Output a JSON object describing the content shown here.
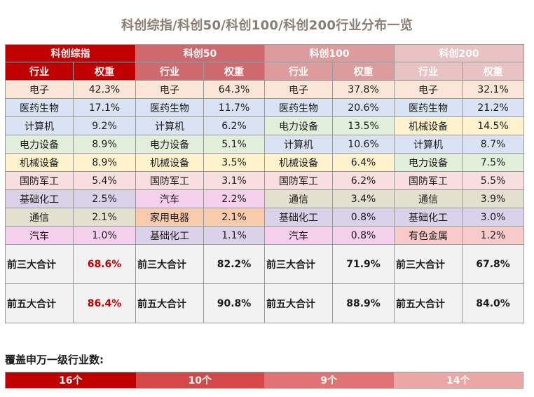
{
  "title": "科创综指/科创50/科创100/科创200行业分布一览",
  "col_header": {
    "industry": "行业",
    "weight": "权重"
  },
  "industry_colors": {
    "电子": "#fbe5d6",
    "医药生物": "#dae3f3",
    "计算机": "#dae3f3",
    "电力设备": "#e2efda",
    "机械设备": "#fff2cc",
    "国防军工": "#f8dede",
    "基础化工": "#d9d2e9",
    "通信": "#e4e0cf",
    "汽车": "#f5d0ec",
    "家用电器": "#f8cbad",
    "有色金属": "#f8cbca"
  },
  "indices": [
    {
      "name": "科创综指",
      "rows": [
        [
          "电子",
          "42.3%"
        ],
        [
          "医药生物",
          "17.1%"
        ],
        [
          "计算机",
          "9.2%"
        ],
        [
          "电力设备",
          "8.9%"
        ],
        [
          "机械设备",
          "8.9%"
        ],
        [
          "国防军工",
          "5.4%"
        ],
        [
          "基础化工",
          "2.5%"
        ],
        [
          "通信",
          "2.1%"
        ],
        [
          "汽车",
          "1.0%"
        ]
      ],
      "top3": "68.6%",
      "top5": "86.4%",
      "coverage": "16个"
    },
    {
      "name": "科创50",
      "rows": [
        [
          "电子",
          "64.3%"
        ],
        [
          "医药生物",
          "11.7%"
        ],
        [
          "计算机",
          "6.2%"
        ],
        [
          "电力设备",
          "5.1%"
        ],
        [
          "机械设备",
          "3.5%"
        ],
        [
          "国防军工",
          "3.1%"
        ],
        [
          "汽车",
          "2.2%"
        ],
        [
          "家用电器",
          "2.1%"
        ],
        [
          "基础化工",
          "1.1%"
        ]
      ],
      "top3": "82.2%",
      "top5": "90.8%",
      "coverage": "10个"
    },
    {
      "name": "科创100",
      "rows": [
        [
          "电子",
          "37.8%"
        ],
        [
          "医药生物",
          "20.6%"
        ],
        [
          "电力设备",
          "13.5%"
        ],
        [
          "计算机",
          "10.6%"
        ],
        [
          "机械设备",
          "6.4%"
        ],
        [
          "国防军工",
          "6.2%"
        ],
        [
          "通信",
          "3.4%"
        ],
        [
          "基础化工",
          "0.8%"
        ],
        [
          "汽车",
          "0.8%"
        ]
      ],
      "top3": "71.9%",
      "top5": "88.9%",
      "coverage": "9个"
    },
    {
      "name": "科创200",
      "rows": [
        [
          "电子",
          "32.1%"
        ],
        [
          "医药生物",
          "21.2%"
        ],
        [
          "机械设备",
          "14.5%"
        ],
        [
          "计算机",
          "8.7%"
        ],
        [
          "电力设备",
          "7.5%"
        ],
        [
          "国防军工",
          "5.5%"
        ],
        [
          "通信",
          "3.9%"
        ],
        [
          "基础化工",
          "3.0%"
        ],
        [
          "有色金属",
          "1.2%"
        ]
      ],
      "top3": "67.8%",
      "top5": "84.0%",
      "coverage": "14个"
    }
  ],
  "summary_labels": {
    "top3": "前三大合计",
    "top5": "前五大合计"
  },
  "coverage_label": "覆盖申万一级行业数:"
}
